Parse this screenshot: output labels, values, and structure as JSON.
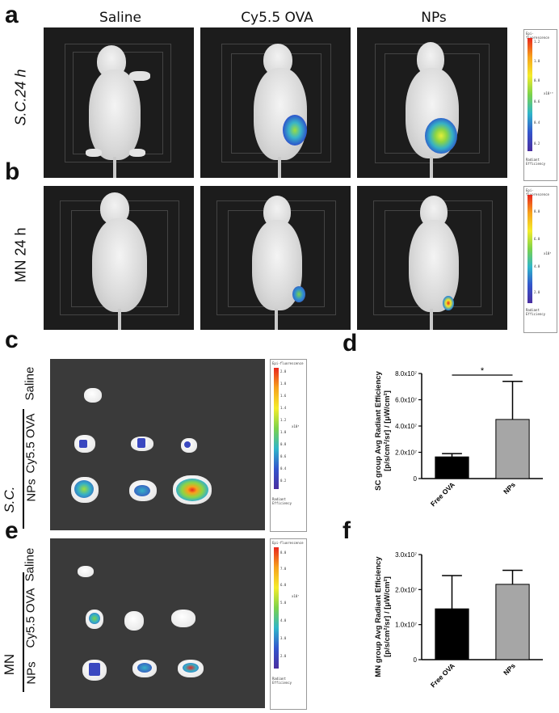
{
  "panels": {
    "a": "a",
    "b": "b",
    "c": "c",
    "d": "d",
    "e": "e",
    "f": "f"
  },
  "columns": [
    "Saline",
    "Cy5.5 OVA",
    "NPs"
  ],
  "rows_ab": [
    "S.C.24 h",
    "MN  24 h"
  ],
  "group_c": "S.C.",
  "group_e": "MN",
  "organ_rows": [
    "Saline",
    "Cy5.5 OVA",
    "NPs"
  ],
  "colorbar_a": {
    "title": "Epi-fluorescence",
    "unit": "x10¹⁰",
    "ticks": [
      "1.2",
      "1.0",
      "0.8",
      "0.6",
      "0.4",
      "0.2"
    ],
    "footer": "Radiant Efficiency"
  },
  "colorbar_b": {
    "title": "Epi-fluorescence",
    "unit": "x10⁹",
    "ticks": [
      "8.0",
      "6.0",
      "4.0",
      "2.0"
    ],
    "footer": "Radiant Efficiency"
  },
  "colorbar_c": {
    "title": "Epi-fluorescence",
    "unit": "x10⁸",
    "ticks": [
      "2.0",
      "1.8",
      "1.6",
      "1.4",
      "1.2",
      "1.0",
      "0.8",
      "0.6",
      "0.4",
      "0.2"
    ],
    "footer": "Radiant Efficiency"
  },
  "colorbar_e": {
    "title": "Epi-fluorescence",
    "unit": "x10⁷",
    "ticks": [
      "8.0",
      "7.0",
      "6.0",
      "5.0",
      "4.0",
      "3.0",
      "2.0"
    ],
    "footer": "Radiant Efficiency"
  },
  "chart_data": [
    {
      "type": "bar",
      "panel": "d",
      "categories": [
        "Free OVA",
        "NPs"
      ],
      "values": [
        16500000,
        45000000
      ],
      "errors": [
        2500000,
        29000000
      ],
      "colors": [
        "#000000",
        "#a6a6a6"
      ],
      "ylabel_line1": "SC group Avg Radiant Efficiency",
      "ylabel_line2": "[p/s/cm²/sr] / [μW/cm²]",
      "ylim": [
        0,
        80000000
      ],
      "yticks": [
        0,
        20000000,
        40000000,
        60000000,
        80000000
      ],
      "ytick_labels": [
        "0",
        "2.0x10⁷",
        "4.0x10⁷",
        "6.0x10⁷",
        "8.0x10⁷"
      ],
      "significance": "*"
    },
    {
      "type": "bar",
      "panel": "f",
      "categories": [
        "Free OVA",
        "NPs"
      ],
      "values": [
        14500000,
        21500000
      ],
      "errors": [
        9500000,
        4000000
      ],
      "colors": [
        "#000000",
        "#a6a6a6"
      ],
      "ylabel_line1": "MN group Avg Radiant Efficiency",
      "ylabel_line2": "[p/s/cm²/sr] / [μW/cm²]",
      "ylim": [
        0,
        30000000
      ],
      "yticks": [
        0,
        10000000,
        20000000,
        30000000
      ],
      "ytick_labels": [
        "0",
        "1.0x10⁷",
        "2.0x10⁷",
        "3.0x10⁷"
      ]
    }
  ]
}
